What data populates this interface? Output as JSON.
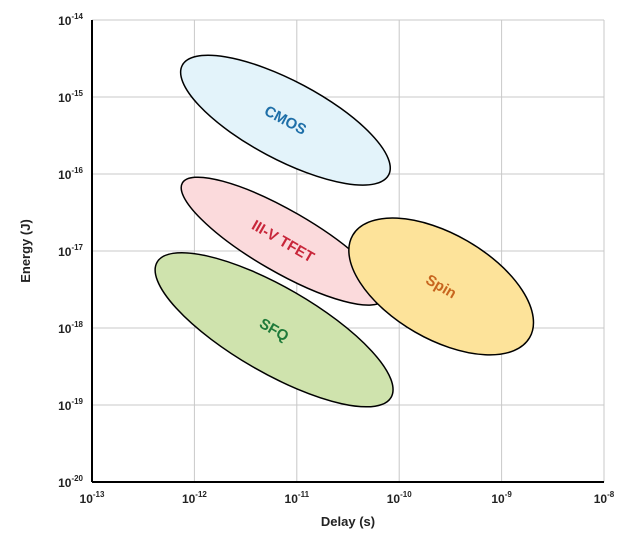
{
  "chart_data": {
    "type": "scatter",
    "title": "",
    "xlabel": "Delay (s)",
    "ylabel": "Energy (J)",
    "x_scale": "log",
    "y_scale": "log",
    "xlim": [
      1e-13,
      1e-08
    ],
    "ylim": [
      1e-20,
      1e-14
    ],
    "grid": true,
    "x_ticks": [
      {
        "base": "10",
        "exp": "-13"
      },
      {
        "base": "10",
        "exp": "-12"
      },
      {
        "base": "10",
        "exp": "-11"
      },
      {
        "base": "10",
        "exp": "-10"
      },
      {
        "base": "10",
        "exp": "-9"
      },
      {
        "base": "10",
        "exp": "-8"
      }
    ],
    "y_ticks": [
      {
        "base": "10",
        "exp": "-20"
      },
      {
        "base": "10",
        "exp": "-19"
      },
      {
        "base": "10",
        "exp": "-18"
      },
      {
        "base": "10",
        "exp": "-17"
      },
      {
        "base": "10",
        "exp": "-16"
      },
      {
        "base": "10",
        "exp": "-15"
      },
      {
        "base": "10",
        "exp": "-14"
      }
    ],
    "regions": [
      {
        "name": "CMOS",
        "delay_range_s": [
          1e-12,
          6e-11
        ],
        "energy_range_J": [
          5e-17,
          5e-15
        ],
        "fill": "#e3f3fa",
        "label_color": "#1f6fa8",
        "rotation_deg": 28
      },
      {
        "name": "III-V TFET",
        "delay_range_s": [
          9e-13,
          6e-11
        ],
        "energy_range_J": [
          1.5e-18,
          1.2e-16
        ],
        "fill": "#fbdadc",
        "label_color": "#c8263a",
        "rotation_deg": 30
      },
      {
        "name": "Spin",
        "delay_range_s": [
          6e-11,
          1.1e-09
        ],
        "energy_range_J": [
          3e-19,
          4e-17
        ],
        "fill": "#fde39a",
        "label_color": "#c7651e",
        "rotation_deg": 30
      },
      {
        "name": "SFQ",
        "delay_range_s": [
          6e-13,
          6e-11
        ],
        "energy_range_J": [
          6e-20,
          1.5e-17
        ],
        "fill": "#cfe3ad",
        "label_color": "#1f7a3a",
        "rotation_deg": 30
      }
    ]
  }
}
